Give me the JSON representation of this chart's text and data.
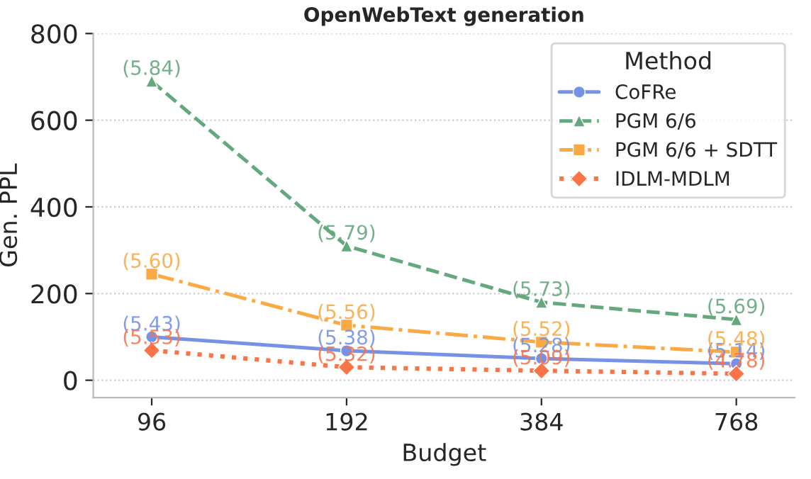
{
  "chart_data": {
    "type": "line",
    "title": "OpenWebText generation",
    "xlabel": "Budget",
    "ylabel": "Gen. PPL",
    "legend_title": "Method",
    "categories": [
      "96",
      "192",
      "384",
      "768"
    ],
    "series": [
      {
        "name": "CoFRe",
        "color": "#7592e6",
        "values": [
          100,
          68,
          50,
          38
        ],
        "marker": "circle",
        "line_style": "solid"
      },
      {
        "name": "PGM 6/6",
        "color": "#64a87d",
        "values": [
          690,
          310,
          180,
          140
        ],
        "marker": "triangle",
        "line_style": "dashed"
      },
      {
        "name": "PGM 6/6 + SDTT",
        "color": "#fba944",
        "values": [
          245,
          127,
          88,
          65
        ],
        "marker": "square",
        "line_style": "dashdot"
      },
      {
        "name": "IDLM-MDLM",
        "color": "#fa7448",
        "values": [
          69,
          30,
          22,
          15
        ],
        "marker": "diamond",
        "line_style": "dotted"
      }
    ],
    "annotations": [
      {
        "text": "(5.43)",
        "x": "96",
        "y": 100
      },
      {
        "text": "(5.38)",
        "x": "192",
        "y": 68
      },
      {
        "text": "(5.28)",
        "x": "384",
        "y": 50
      },
      {
        "text": "(5.14)",
        "x": "768",
        "y": 38
      },
      {
        "text": "(5.84)",
        "x": "96",
        "y": 690
      },
      {
        "text": "(5.79)",
        "x": "192",
        "y": 310
      },
      {
        "text": "(5.73)",
        "x": "384",
        "y": 180
      },
      {
        "text": "(5.69)",
        "x": "768",
        "y": 140
      },
      {
        "text": "(5.60)",
        "x": "96",
        "y": 245
      },
      {
        "text": "(5.56)",
        "x": "192",
        "y": 127
      },
      {
        "text": "(5.52)",
        "x": "384",
        "y": 88
      },
      {
        "text": "(5.48)",
        "x": "768",
        "y": 65
      },
      {
        "text": "(5.53)",
        "x": "96",
        "y": 69
      },
      {
        "text": "(5.32)",
        "x": "192",
        "y": 30
      },
      {
        "text": "(5.09)",
        "x": "384",
        "y": 22
      },
      {
        "text": "(4.78)",
        "x": "768",
        "y": 15
      }
    ],
    "ylim": [
      -40,
      800
    ],
    "yticks": [
      0,
      200,
      400,
      600,
      800
    ],
    "grid": "y",
    "legend": "top right"
  }
}
